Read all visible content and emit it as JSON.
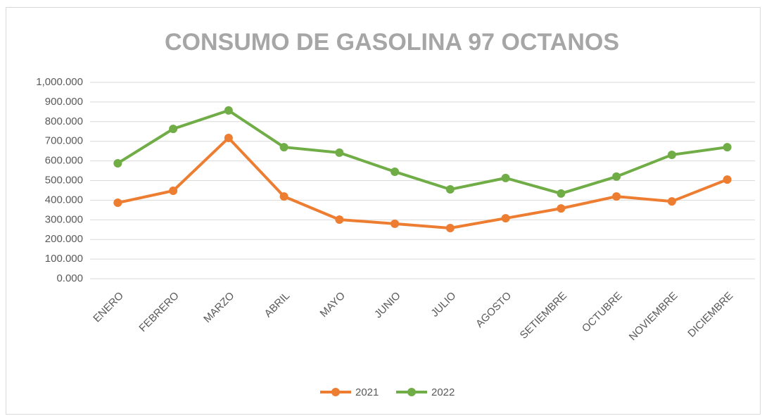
{
  "chart_data": {
    "type": "line",
    "title": "CONSUMO  DE GASOLINA  97 OCTANOS",
    "categories": [
      "ENERO",
      "FEBRERO",
      "MARZO",
      "ABRIL",
      "MAYO",
      "JUNIO",
      "JULIO",
      "AGOSTO",
      "SETIEMBRE",
      "OCTUBRE",
      "NOVIEMBRE",
      "DICIEMBRE"
    ],
    "series": [
      {
        "name": "2021",
        "color": "#ed7d31",
        "values": [
          387000,
          448000,
          717000,
          419000,
          301000,
          280000,
          258000,
          308000,
          358000,
          419000,
          394000,
          505000
        ]
      },
      {
        "name": "2022",
        "color": "#70ad47",
        "values": [
          588000,
          763000,
          857000,
          670000,
          642000,
          545000,
          455000,
          513000,
          434000,
          520000,
          631000,
          670000
        ]
      }
    ],
    "ylim": [
      0,
      1000000
    ],
    "yticks": [
      {
        "value": 0,
        "label": "0.000"
      },
      {
        "value": 100000,
        "label": "100.000"
      },
      {
        "value": 200000,
        "label": "200.000"
      },
      {
        "value": 300000,
        "label": "300.000"
      },
      {
        "value": 400000,
        "label": "400.000"
      },
      {
        "value": 500000,
        "label": "500.000"
      },
      {
        "value": 600000,
        "label": "600.000"
      },
      {
        "value": 700000,
        "label": "700.000"
      },
      {
        "value": 800000,
        "label": "800.000"
      },
      {
        "value": 900000,
        "label": "900.000"
      },
      {
        "value": 1000000,
        "label": "1,000.000"
      }
    ],
    "grid": true,
    "legend": "bottom"
  }
}
